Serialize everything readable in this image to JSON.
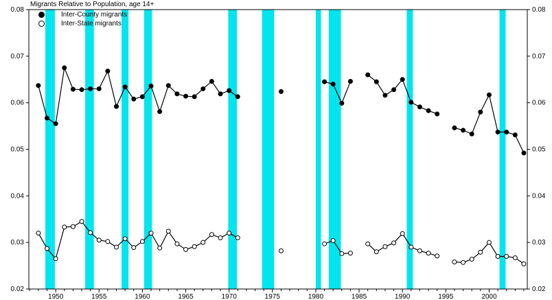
{
  "chart_data": {
    "type": "line",
    "title": "Migrants Relative to Population, age 14+",
    "xlabel": "",
    "ylabel": "",
    "xlim": [
      1946.9,
      2004.4
    ],
    "ylim": [
      0.02,
      0.08
    ],
    "grid": false,
    "legend_position": "top-left-inside",
    "yticks": [
      "0.02",
      "0.03",
      "0.04",
      "0.05",
      "0.06",
      "0.07",
      "0.08"
    ],
    "xticks": [
      1950,
      1955,
      1960,
      1965,
      1970,
      1975,
      1980,
      1985,
      1990,
      1995,
      2000
    ],
    "band_color": "#00E5EE",
    "line_color": "#000000",
    "recession_bands": [
      [
        1948.8,
        1949.9
      ],
      [
        1953.4,
        1954.4
      ],
      [
        1957.6,
        1958.4
      ],
      [
        1960.2,
        1961.1
      ],
      [
        1969.9,
        1970.9
      ],
      [
        1973.8,
        1975.2
      ],
      [
        1980.0,
        1980.6
      ],
      [
        1981.5,
        1982.9
      ],
      [
        1990.5,
        1991.2
      ],
      [
        2001.2,
        2001.9
      ]
    ],
    "series": [
      {
        "name": "Inter-County migrants",
        "marker": "filled",
        "segments": [
          [
            [
              1948,
              0.0637
            ],
            [
              1949,
              0.0567
            ],
            [
              1950,
              0.0555
            ],
            [
              1951,
              0.0675
            ],
            [
              1952,
              0.0629
            ],
            [
              1953,
              0.0628
            ],
            [
              1954,
              0.063
            ],
            [
              1955,
              0.063
            ],
            [
              1956,
              0.0668
            ],
            [
              1957,
              0.0592
            ],
            [
              1958,
              0.0634
            ],
            [
              1959,
              0.0608
            ],
            [
              1960,
              0.0613
            ],
            [
              1961,
              0.0636
            ],
            [
              1962,
              0.0581
            ],
            [
              1963,
              0.0637
            ],
            [
              1964,
              0.0619
            ],
            [
              1965,
              0.0614
            ],
            [
              1966,
              0.0613
            ],
            [
              1967,
              0.063
            ],
            [
              1968,
              0.0646
            ],
            [
              1969,
              0.0619
            ],
            [
              1970,
              0.0626
            ],
            [
              1971,
              0.0613
            ]
          ],
          [
            [
              1976,
              0.0624
            ]
          ],
          [
            [
              1981,
              0.0645
            ],
            [
              1982,
              0.064
            ],
            [
              1983,
              0.0599
            ],
            [
              1984,
              0.0646
            ]
          ],
          [
            [
              1986,
              0.066
            ],
            [
              1987,
              0.0645
            ],
            [
              1988,
              0.0616
            ],
            [
              1989,
              0.0628
            ],
            [
              1990,
              0.065
            ],
            [
              1991,
              0.0601
            ],
            [
              1992,
              0.0591
            ],
            [
              1993,
              0.0583
            ],
            [
              1994,
              0.0576
            ]
          ],
          [
            [
              1996,
              0.0546
            ],
            [
              1997,
              0.0541
            ],
            [
              1998,
              0.0533
            ],
            [
              1999,
              0.058
            ],
            [
              2000,
              0.0617
            ],
            [
              2001,
              0.0537
            ],
            [
              2002,
              0.0537
            ],
            [
              2003,
              0.0531
            ],
            [
              2004,
              0.0492
            ]
          ]
        ]
      },
      {
        "name": "Inter-State migrants",
        "marker": "open",
        "segments": [
          [
            [
              1948,
              0.032
            ],
            [
              1949,
              0.0287
            ],
            [
              1950,
              0.0265
            ],
            [
              1951,
              0.0333
            ],
            [
              1952,
              0.0334
            ],
            [
              1953,
              0.0345
            ],
            [
              1954,
              0.0321
            ],
            [
              1955,
              0.0305
            ],
            [
              1956,
              0.0302
            ],
            [
              1957,
              0.029
            ],
            [
              1958,
              0.0308
            ],
            [
              1959,
              0.0289
            ],
            [
              1960,
              0.0302
            ],
            [
              1961,
              0.032
            ],
            [
              1962,
              0.0288
            ],
            [
              1963,
              0.0324
            ],
            [
              1964,
              0.0297
            ],
            [
              1965,
              0.0285
            ],
            [
              1966,
              0.0291
            ],
            [
              1967,
              0.03
            ],
            [
              1968,
              0.0317
            ],
            [
              1969,
              0.031
            ],
            [
              1970,
              0.032
            ],
            [
              1971,
              0.031
            ]
          ],
          [
            [
              1976,
              0.0282
            ]
          ],
          [
            [
              1981,
              0.0297
            ],
            [
              1982,
              0.0304
            ],
            [
              1983,
              0.0276
            ],
            [
              1984,
              0.0277
            ]
          ],
          [
            [
              1986,
              0.0297
            ],
            [
              1987,
              0.028
            ],
            [
              1988,
              0.0291
            ],
            [
              1989,
              0.0299
            ],
            [
              1990,
              0.0319
            ],
            [
              1991,
              0.029
            ],
            [
              1992,
              0.0282
            ],
            [
              1993,
              0.0277
            ],
            [
              1994,
              0.0271
            ]
          ],
          [
            [
              1996,
              0.0258
            ],
            [
              1997,
              0.0257
            ],
            [
              1998,
              0.0264
            ],
            [
              1999,
              0.0279
            ],
            [
              2000,
              0.03
            ],
            [
              2001,
              0.027
            ],
            [
              2002,
              0.027
            ],
            [
              2003,
              0.0267
            ],
            [
              2004,
              0.0254
            ]
          ]
        ]
      }
    ]
  }
}
